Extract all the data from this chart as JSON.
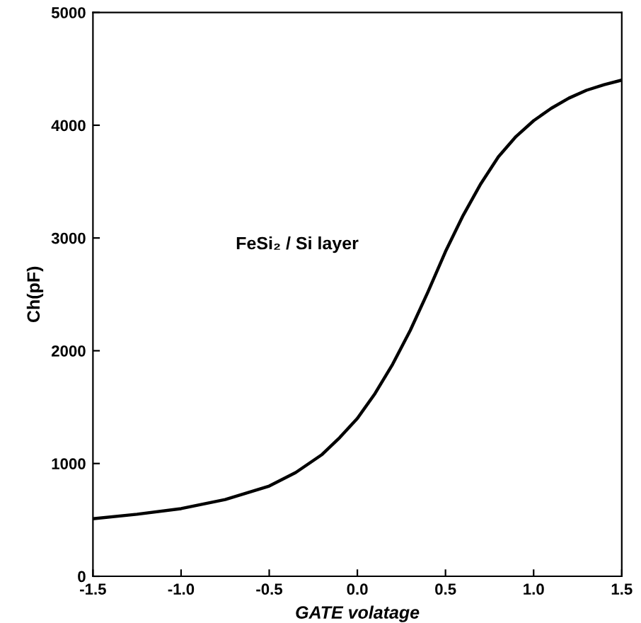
{
  "chart_data": {
    "type": "line",
    "xlabel": "GATE volatage",
    "ylabel": "Ch(pF)",
    "annotations": [
      "FeSi₂ / Si layer"
    ],
    "series": [
      {
        "color": "#000000",
        "x": [
          -1.5,
          -1.25,
          -1.0,
          -0.75,
          -0.5,
          -0.35,
          -0.2,
          -0.1,
          0.0,
          0.1,
          0.2,
          0.3,
          0.4,
          0.5,
          0.6,
          0.7,
          0.8,
          0.9,
          1.0,
          1.1,
          1.2,
          1.3,
          1.4,
          1.5
        ],
        "values": [
          510,
          550,
          600,
          680,
          800,
          920,
          1080,
          1230,
          1400,
          1620,
          1880,
          2180,
          2520,
          2880,
          3200,
          3480,
          3720,
          3900,
          4040,
          4150,
          4240,
          4310,
          4360,
          4400
        ]
      }
    ],
    "xlim": [
      -1.5,
      1.5
    ],
    "xticks": [
      {
        "value": -1.5,
        "label": "-1.5"
      },
      {
        "value": -1.0,
        "label": "-1.0"
      },
      {
        "value": -0.5,
        "label": "-0.5"
      },
      {
        "value": 0.0,
        "label": "0.0"
      },
      {
        "value": 0.5,
        "label": "0.5"
      },
      {
        "value": 1.0,
        "label": "1.0"
      },
      {
        "value": 1.5,
        "label": "1.5"
      }
    ],
    "ylim": [
      0,
      5000
    ],
    "yticks": [
      0,
      1000,
      2000,
      3000,
      4000,
      5000
    ],
    "grid": false,
    "legend": false,
    "marker": "none",
    "line_style": "solid"
  }
}
